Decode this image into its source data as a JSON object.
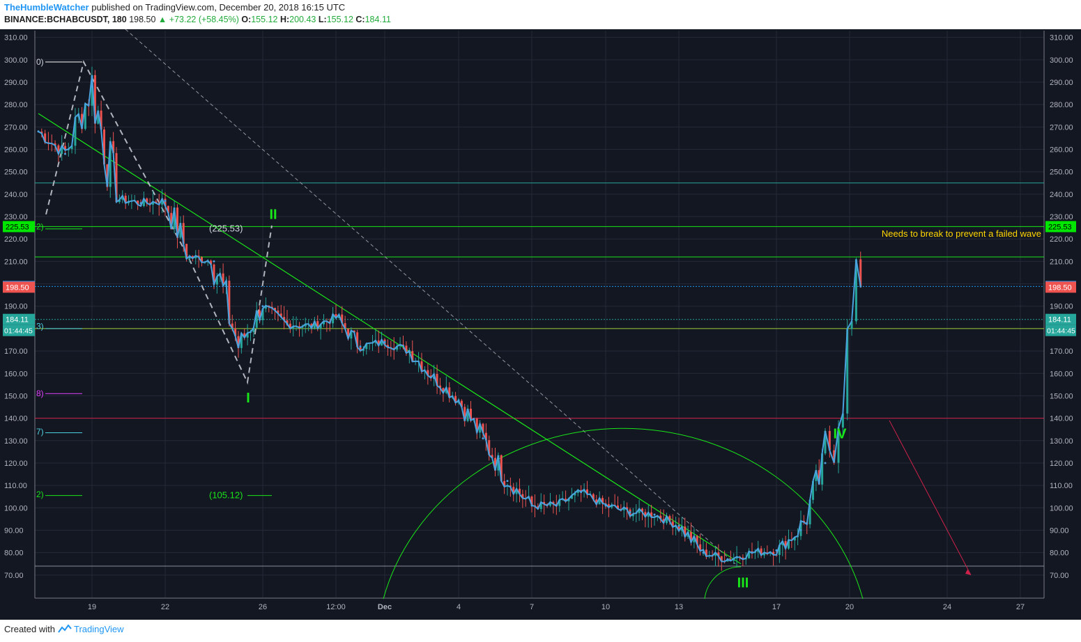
{
  "header": {
    "author": "TheHumbleWatcher",
    "published": "published on TradingView.com, December 20, 2018 16:15 UTC",
    "symbol": "BINANCE:BCHABCUSDT, 180",
    "last": "198.50",
    "change": "+73.22 (+58.45%)",
    "o_label": "O:",
    "o_value": "155.12",
    "h_label": "H:",
    "h_value": "200.43",
    "l_label": "L:",
    "l_value": "155.12",
    "c_label": "C:",
    "c_value": "184.11"
  },
  "footer": {
    "created": "Created with",
    "brand": "TradingView"
  },
  "colors": {
    "background": "#131722",
    "grid": "#242a38",
    "up": "#26a69a",
    "down": "#ef5350",
    "line": "#4aa3df",
    "green": "#19e619",
    "red": "#ff1744",
    "annotation": "#ffd600"
  },
  "chart_data": {
    "type": "line",
    "title": "",
    "ylim": [
      60,
      313
    ],
    "y_ticks": [
      "70.00",
      "80.00",
      "90.00",
      "100.00",
      "110.00",
      "120.00",
      "130.00",
      "140.00",
      "150.00",
      "160.00",
      "170.00",
      "180.00",
      "190.00",
      "200.00",
      "210.00",
      "220.00",
      "230.00",
      "240.00",
      "250.00",
      "260.00",
      "270.00",
      "280.00",
      "290.00",
      "300.00",
      "310.00"
    ],
    "x_ticks": [
      "19",
      "22",
      "26",
      "12:00",
      "Dec",
      "4",
      "7",
      "10",
      "13",
      "17",
      "20",
      "24",
      "27"
    ],
    "series": [
      {
        "x": [
          "Nov 17",
          "Nov 18",
          "Nov 19",
          "Nov 20",
          "Nov 21",
          "Nov 22",
          "Nov 23",
          "Nov 24",
          "Nov 25",
          "Nov 26",
          "Nov 27",
          "Nov 28",
          "Nov 29",
          "Nov 30",
          "Dec 1",
          "Dec 2",
          "Dec 3",
          "Dec 4",
          "Dec 5",
          "Dec 6",
          "Dec 7",
          "Dec 8",
          "Dec 9",
          "Dec 10",
          "Dec 11",
          "Dec 12",
          "Dec 13",
          "Dec 14",
          "Dec 15",
          "Dec 16",
          "Dec 17",
          "Dec 18",
          "Dec 19",
          "Dec 20"
        ],
        "values": [
          268,
          258,
          288,
          238,
          236,
          237,
          212,
          210,
          172,
          190,
          182,
          181,
          185,
          172,
          174,
          170,
          158,
          148,
          131,
          112,
          101,
          101,
          107,
          101,
          98,
          97,
          92,
          80,
          77,
          80,
          81,
          90,
          120,
          198.8
        ]
      }
    ],
    "price_labels": [
      {
        "text": "225.53",
        "value": 225.53,
        "color": "#00e600"
      },
      {
        "text": "198.80",
        "value": 198.8,
        "color": "#2196f3"
      },
      {
        "text": "198.50",
        "value": 198.5,
        "color": "#ef5350"
      },
      {
        "text": "184.11",
        "value": 184.11,
        "color": "#26a69a"
      }
    ],
    "countdown": "01:44:45",
    "wave_labels": [
      "I",
      "II",
      "III",
      "IV"
    ],
    "fib_labels": [
      "(225.53)",
      "(105.12)"
    ],
    "left_fragments": [
      "0)",
      "2)",
      "3)",
      "8)",
      "7)",
      "2)"
    ],
    "annotation": "Needs to break to prevent a failed wave",
    "grid": true
  }
}
